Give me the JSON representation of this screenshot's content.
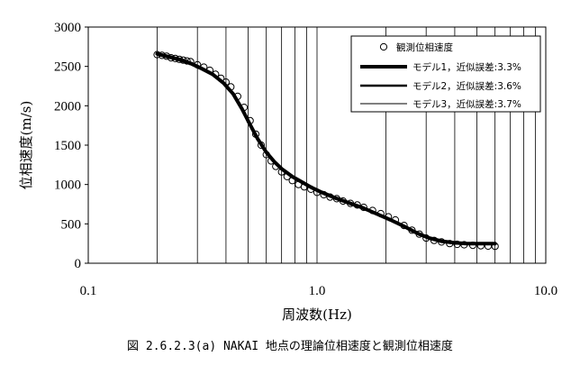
{
  "chart_data": {
    "type": "line",
    "x_scale": "log",
    "xlim": [
      0.1,
      10.0
    ],
    "ylim": [
      0,
      3000
    ],
    "x_ticks": [
      "0.1",
      "1.0",
      "10.0"
    ],
    "y_ticks": [
      "0",
      "500",
      "1000",
      "1500",
      "2000",
      "2500",
      "3000"
    ],
    "xlabel": "周波数(Hz)",
    "ylabel": "位相速度(m/s)",
    "grid": "vertical",
    "legend_position": "top-right",
    "caption": "図 2.6.2.3(a)  NAKAI 地点の理論位相速度と観測位相速度",
    "series": [
      {
        "name": "観測位相速度",
        "marker": "circle-open",
        "x": [
          0.2,
          0.21,
          0.22,
          0.23,
          0.24,
          0.25,
          0.26,
          0.27,
          0.28,
          0.3,
          0.32,
          0.34,
          0.36,
          0.38,
          0.4,
          0.42,
          0.45,
          0.48,
          0.51,
          0.54,
          0.57,
          0.6,
          0.63,
          0.66,
          0.7,
          0.74,
          0.78,
          0.83,
          0.88,
          0.94,
          1.0,
          1.07,
          1.14,
          1.22,
          1.3,
          1.4,
          1.5,
          1.6,
          1.75,
          1.9,
          2.05,
          2.2,
          2.4,
          2.6,
          2.8,
          3.0,
          3.25,
          3.5,
          3.8,
          4.1,
          4.4,
          4.8,
          5.2,
          5.6,
          6.0
        ],
        "y": [
          2650,
          2640,
          2630,
          2610,
          2600,
          2590,
          2580,
          2570,
          2560,
          2520,
          2490,
          2450,
          2400,
          2350,
          2300,
          2240,
          2120,
          1980,
          1810,
          1640,
          1500,
          1380,
          1300,
          1230,
          1160,
          1100,
          1050,
          1000,
          970,
          940,
          900,
          870,
          840,
          820,
          790,
          760,
          740,
          710,
          670,
          630,
          590,
          550,
          480,
          420,
          370,
          320,
          290,
          270,
          250,
          240,
          235,
          228,
          222,
          218,
          215
        ]
      },
      {
        "name": "モデル1，近似誤差:3.3%",
        "line_width": "thick",
        "x": [
          0.2,
          0.22,
          0.25,
          0.28,
          0.31,
          0.35,
          0.39,
          0.43,
          0.47,
          0.51,
          0.55,
          0.6,
          0.65,
          0.7,
          0.78,
          0.86,
          0.95,
          1.05,
          1.2,
          1.4,
          1.6,
          1.85,
          2.1,
          2.4,
          2.75,
          3.1,
          3.5,
          4.0,
          4.5,
          5.0,
          5.5,
          6.0
        ],
        "y": [
          2660,
          2630,
          2590,
          2540,
          2480,
          2400,
          2290,
          2150,
          1960,
          1760,
          1580,
          1410,
          1290,
          1200,
          1100,
          1030,
          960,
          900,
          830,
          760,
          700,
          620,
          550,
          470,
          380,
          320,
          280,
          260,
          250,
          250,
          250,
          250
        ]
      },
      {
        "name": "モデル2，近似誤差:3.6%",
        "line_width": "medium",
        "x": [
          0.2,
          0.22,
          0.25,
          0.28,
          0.31,
          0.35,
          0.39,
          0.43,
          0.47,
          0.51,
          0.55,
          0.6,
          0.65,
          0.7,
          0.78,
          0.86,
          0.95,
          1.05,
          1.2,
          1.4,
          1.6,
          1.85,
          2.1,
          2.4,
          2.75,
          3.1,
          3.5,
          4.0,
          4.5,
          5.0,
          5.5,
          6.0
        ],
        "y": [
          2650,
          2620,
          2580,
          2530,
          2470,
          2390,
          2280,
          2140,
          1950,
          1750,
          1570,
          1400,
          1280,
          1190,
          1090,
          1020,
          950,
          890,
          820,
          750,
          690,
          610,
          540,
          460,
          370,
          310,
          270,
          250,
          245,
          245,
          245,
          245
        ]
      },
      {
        "name": "モデル3，近似誤差:3.7%",
        "line_width": "thin",
        "x": [
          0.2,
          0.22,
          0.25,
          0.28,
          0.31,
          0.35,
          0.39,
          0.43,
          0.47,
          0.51,
          0.55,
          0.6,
          0.65,
          0.7,
          0.78,
          0.86,
          0.95,
          1.05,
          1.2,
          1.4,
          1.6,
          1.85,
          2.1,
          2.4,
          2.75,
          3.1,
          3.5,
          4.0,
          4.5,
          5.0,
          5.5,
          6.0
        ],
        "y": [
          2640,
          2610,
          2570,
          2520,
          2460,
          2380,
          2270,
          2130,
          1940,
          1740,
          1560,
          1395,
          1275,
          1185,
          1085,
          1015,
          945,
          885,
          815,
          745,
          685,
          605,
          535,
          455,
          365,
          305,
          265,
          245,
          240,
          240,
          240,
          240
        ]
      }
    ]
  }
}
